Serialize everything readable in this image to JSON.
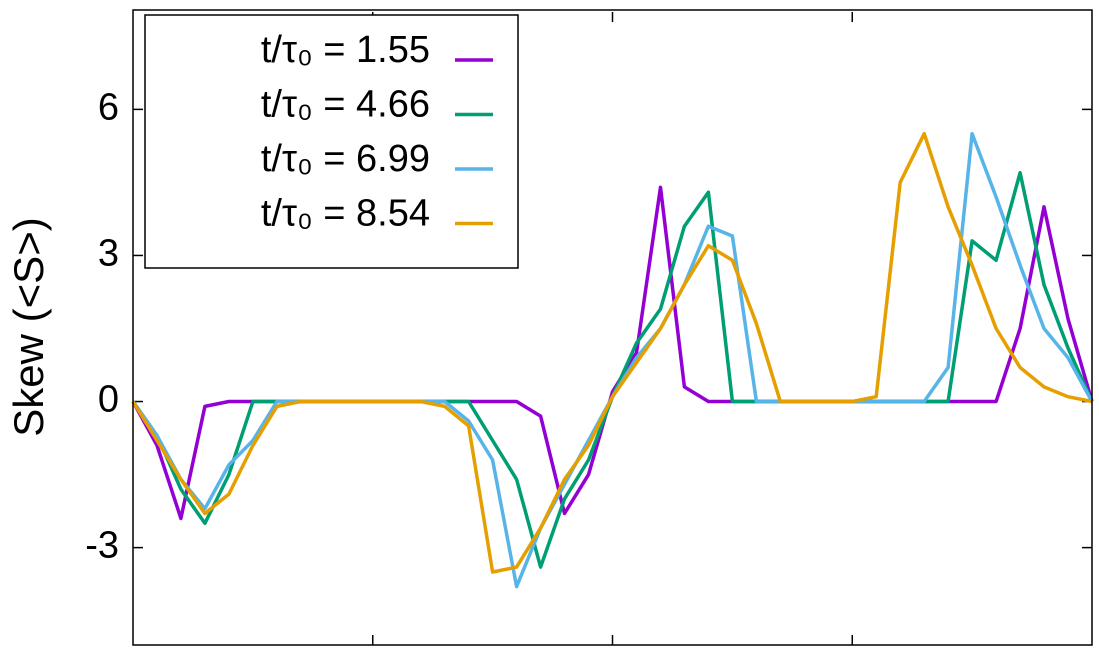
{
  "chart_data": {
    "type": "line",
    "y_label": "Skew (<S>)",
    "x": [
      0,
      0.1,
      0.2,
      0.3,
      0.4,
      0.5,
      0.6,
      0.7,
      0.8,
      0.9,
      1,
      1.1,
      1.2,
      1.3,
      1.4,
      1.5,
      1.6,
      1.7,
      1.8,
      1.9,
      2,
      2.1,
      2.2,
      2.3,
      2.4,
      2.5,
      2.6,
      2.7,
      2.8,
      2.9,
      3,
      3.1,
      3.2,
      3.3,
      3.4,
      3.5,
      3.6,
      3.7,
      3.8,
      3.9,
      4
    ],
    "xlim": [
      0,
      4
    ],
    "xticks": [
      1,
      2,
      3
    ],
    "ylim": [
      -5,
      8
    ],
    "yticks": [
      -3,
      0,
      3,
      6
    ],
    "legend_position": "upper left",
    "series": [
      {
        "name": "t/τ₀ = 1.55",
        "color": "#9400d3",
        "values": [
          0,
          -0.9,
          -2.4,
          -0.1,
          0,
          0,
          0,
          0,
          0,
          0,
          0,
          0,
          0,
          0,
          0,
          0,
          0,
          -0.3,
          -2.3,
          -1.5,
          0.2,
          1.0,
          4.4,
          0.3,
          0,
          0,
          0,
          0,
          0,
          0,
          0,
          0,
          0,
          0,
          0,
          0,
          0,
          1.5,
          4.0,
          1.7,
          0
        ]
      },
      {
        "name": "t/τ₀ = 4.66",
        "color": "#009e73",
        "values": [
          0,
          -0.7,
          -1.8,
          -2.5,
          -1.5,
          0,
          0,
          0,
          0,
          0,
          0,
          0,
          0,
          0,
          0,
          -0.8,
          -1.6,
          -3.4,
          -2.0,
          -1.2,
          0.1,
          1.2,
          1.9,
          3.6,
          4.3,
          0,
          0,
          0,
          0,
          0,
          0,
          0,
          0,
          0,
          0,
          3.3,
          2.9,
          4.7,
          2.4,
          1.1,
          0
        ]
      },
      {
        "name": "t/τ₀ = 6.99",
        "color": "#56b4e9",
        "values": [
          0,
          -0.7,
          -1.6,
          -2.2,
          -1.3,
          -0.8,
          0,
          0,
          0,
          0,
          0,
          0,
          0,
          0,
          -0.4,
          -1.2,
          -3.8,
          -2.6,
          -1.7,
          -0.8,
          0.1,
          0.9,
          1.5,
          2.4,
          3.6,
          3.4,
          0,
          0,
          0,
          0,
          0,
          0,
          0,
          0,
          0.7,
          5.5,
          4.2,
          2.8,
          1.5,
          0.9,
          0
        ]
      },
      {
        "name": "t/τ₀ = 8.54",
        "color": "#e69f00",
        "values": [
          0,
          -0.8,
          -1.6,
          -2.3,
          -1.9,
          -0.9,
          -0.1,
          0,
          0,
          0,
          0,
          0,
          0,
          -0.1,
          -0.5,
          -3.5,
          -3.4,
          -2.6,
          -1.6,
          -0.9,
          0.1,
          0.8,
          1.5,
          2.4,
          3.2,
          2.9,
          1.6,
          0,
          0,
          0,
          0,
          0.1,
          4.5,
          5.5,
          4.0,
          2.8,
          1.5,
          0.7,
          0.3,
          0.1,
          0
        ]
      }
    ]
  }
}
